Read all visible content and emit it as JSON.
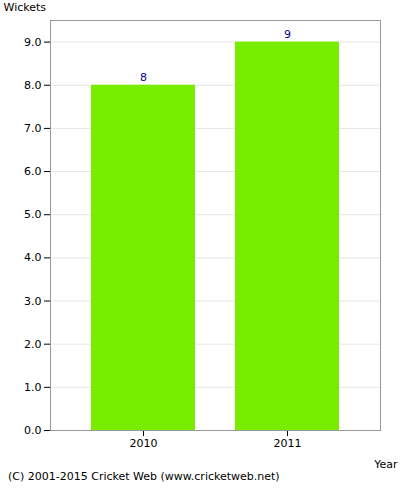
{
  "chart_data": {
    "type": "bar",
    "categories": [
      "2010",
      "2011"
    ],
    "values": [
      8,
      9
    ],
    "color": "#77ee00",
    "xlabel": "Year",
    "ylabel": "Wickets",
    "ylim": [
      0,
      9.5
    ],
    "yticks": [
      {
        "value": 0,
        "label": "0.0"
      },
      {
        "value": 1,
        "label": "1.0"
      },
      {
        "value": 2,
        "label": "2.0"
      },
      {
        "value": 3,
        "label": "3.0"
      },
      {
        "value": 4,
        "label": "4.0"
      },
      {
        "value": 5,
        "label": "5.0"
      },
      {
        "value": 6,
        "label": "6.0"
      },
      {
        "value": 7,
        "label": "7.0"
      },
      {
        "value": 8,
        "label": "8.0"
      },
      {
        "value": 9,
        "label": "9.0"
      }
    ],
    "grid": true,
    "data_labels": true,
    "caption": "(C) 2001-2015 Cricket Web (www.cricketweb.net)"
  }
}
